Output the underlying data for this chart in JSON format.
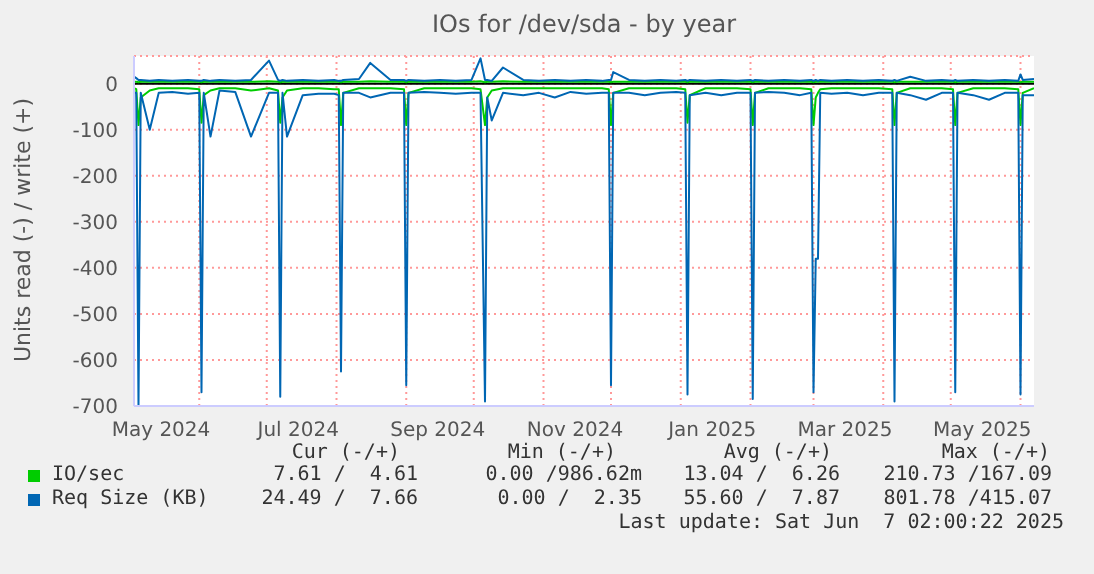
{
  "chart_data": {
    "type": "line",
    "title": "IOs for /dev/sda - by year",
    "ylabel": "Units read (-) / write (+)",
    "x": [
      "2024-05-03",
      "2024-05-04",
      "2024-05-05",
      "2024-05-06",
      "2024-05-10",
      "2024-05-14",
      "2024-05-20",
      "2024-05-27",
      "2024-06-01",
      "2024-06-02",
      "2024-06-03",
      "2024-06-06",
      "2024-06-10",
      "2024-06-17",
      "2024-06-24",
      "2024-07-02",
      "2024-07-06",
      "2024-07-07",
      "2024-07-08",
      "2024-07-10",
      "2024-07-17",
      "2024-07-24",
      "2024-07-31",
      "2024-08-02",
      "2024-08-03",
      "2024-08-04",
      "2024-08-11",
      "2024-08-16",
      "2024-08-25",
      "2024-08-31",
      "2024-09-01",
      "2024-09-02",
      "2024-09-09",
      "2024-09-16",
      "2024-09-23",
      "2024-09-30",
      "2024-10-04",
      "2024-10-06",
      "2024-10-07",
      "2024-10-09",
      "2024-10-14",
      "2024-10-23",
      "2024-10-30",
      "2024-11-06",
      "2024-11-13",
      "2024-11-20",
      "2024-11-27",
      "2024-11-30",
      "2024-12-01",
      "2024-12-02",
      "2024-12-09",
      "2024-12-16",
      "2024-12-23",
      "2024-12-30",
      "2025-01-03",
      "2025-01-04",
      "2025-01-05",
      "2025-01-12",
      "2025-01-19",
      "2025-01-26",
      "2025-02-01",
      "2025-02-02",
      "2025-02-03",
      "2025-02-09",
      "2025-02-16",
      "2025-02-23",
      "2025-02-28",
      "2025-03-01",
      "2025-03-02",
      "2025-03-03",
      "2025-03-04",
      "2025-03-09",
      "2025-03-16",
      "2025-03-23",
      "2025-03-30",
      "2025-04-05",
      "2025-04-06",
      "2025-04-07",
      "2025-04-13",
      "2025-04-20",
      "2025-04-27",
      "2025-05-02",
      "2025-05-03",
      "2025-05-04",
      "2025-05-11",
      "2025-05-18",
      "2025-05-25",
      "2025-05-31",
      "2025-06-01",
      "2025-06-02",
      "2025-06-07"
    ],
    "series": [
      {
        "name": "IO/sec",
        "color": "#00cc00",
        "values": [
          -10,
          -12,
          -90,
          -30,
          -15,
          -10,
          -10,
          -10,
          -12,
          -85,
          -25,
          -15,
          -10,
          -10,
          -15,
          -10,
          -15,
          -85,
          -30,
          -15,
          -10,
          -10,
          -12,
          -12,
          -90,
          -20,
          -10,
          -10,
          -10,
          -12,
          -90,
          -20,
          -10,
          -10,
          -10,
          -10,
          -12,
          -90,
          -30,
          -15,
          -10,
          -10,
          -10,
          -10,
          -10,
          -10,
          -10,
          -12,
          -90,
          -20,
          -10,
          -10,
          -10,
          -10,
          -12,
          -85,
          -25,
          -10,
          -10,
          -10,
          -12,
          -90,
          -20,
          -10,
          -10,
          -10,
          -12,
          -90,
          -30,
          -20,
          -12,
          -10,
          -10,
          -10,
          -10,
          -12,
          -90,
          -20,
          -10,
          -10,
          -10,
          -12,
          -90,
          -20,
          -10,
          -10,
          -10,
          -12,
          -90,
          -20,
          -10
        ]
      },
      {
        "color": "#00cc00",
        "values": [
          4,
          4,
          3,
          4,
          4,
          4,
          4,
          4,
          4,
          3,
          4,
          4,
          4,
          4,
          4,
          5,
          4,
          3,
          4,
          4,
          4,
          4,
          4,
          4,
          3,
          4,
          4,
          5,
          4,
          4,
          3,
          4,
          4,
          4,
          4,
          4,
          5,
          3,
          4,
          4,
          5,
          4,
          4,
          4,
          4,
          4,
          4,
          4,
          3,
          4,
          4,
          4,
          4,
          4,
          4,
          3,
          4,
          4,
          4,
          4,
          4,
          3,
          4,
          4,
          4,
          4,
          4,
          3,
          4,
          4,
          4,
          4,
          4,
          4,
          4,
          4,
          3,
          4,
          4,
          4,
          4,
          4,
          3,
          4,
          4,
          4,
          4,
          4,
          3,
          4,
          4
        ]
      },
      {
        "name": "Req Size (KB)",
        "color": "#0066b3",
        "values": [
          -20,
          -20,
          -700,
          -20,
          -100,
          -20,
          -18,
          -22,
          -20,
          -670,
          -20,
          -115,
          -15,
          -18,
          -115,
          -20,
          -20,
          -680,
          -20,
          -115,
          -25,
          -22,
          -22,
          -25,
          -625,
          -20,
          -20,
          -30,
          -20,
          -20,
          -655,
          -20,
          -18,
          -20,
          -22,
          -20,
          -20,
          -690,
          -30,
          -80,
          -20,
          -25,
          -20,
          -30,
          -18,
          -22,
          -20,
          -20,
          -655,
          -20,
          -20,
          -25,
          -20,
          -18,
          -20,
          -675,
          -25,
          -20,
          -25,
          -20,
          -20,
          -685,
          -20,
          -18,
          -20,
          -25,
          -20,
          -670,
          -380,
          -380,
          -20,
          -22,
          -20,
          -25,
          -20,
          -20,
          -690,
          -20,
          -25,
          -35,
          -20,
          -20,
          -670,
          -20,
          -25,
          -35,
          -20,
          -20,
          -675,
          -25,
          -25
        ]
      },
      {
        "color": "#0066b3",
        "values": [
          15,
          12,
          8,
          8,
          6,
          8,
          6,
          8,
          6,
          6,
          8,
          6,
          8,
          6,
          8,
          50,
          8,
          6,
          8,
          6,
          8,
          6,
          8,
          6,
          6,
          8,
          10,
          45,
          8,
          8,
          6,
          8,
          6,
          8,
          6,
          8,
          55,
          8,
          8,
          6,
          35,
          8,
          6,
          8,
          6,
          8,
          6,
          8,
          8,
          25,
          8,
          6,
          8,
          6,
          8,
          6,
          8,
          6,
          8,
          6,
          8,
          6,
          8,
          6,
          8,
          6,
          8,
          6,
          8,
          6,
          8,
          6,
          8,
          6,
          8,
          6,
          8,
          6,
          15,
          6,
          8,
          6,
          8,
          6,
          8,
          6,
          8,
          6,
          20,
          8,
          10
        ]
      }
    ],
    "ylim": [
      -700,
      60
    ],
    "yticks": [
      0,
      -100,
      -200,
      -300,
      -400,
      -500,
      -600,
      -700
    ],
    "xlim": [
      "2024-05-03",
      "2025-06-07"
    ],
    "xticks": [
      {
        "value": "2024-05-15",
        "label": "May 2024"
      },
      {
        "value": "2024-06-01",
        "label": null
      },
      {
        "value": "2024-07-01",
        "label": null
      },
      {
        "value": "2024-07-15",
        "label": "Jul 2024"
      },
      {
        "value": "2024-08-01",
        "label": null
      },
      {
        "value": "2024-09-01",
        "label": null
      },
      {
        "value": "2024-09-15",
        "label": "Sep 2024"
      },
      {
        "value": "2024-10-01",
        "label": null
      },
      {
        "value": "2024-11-01",
        "label": null
      },
      {
        "value": "2024-11-15",
        "label": "Nov 2024"
      },
      {
        "value": "2024-12-01",
        "label": null
      },
      {
        "value": "2025-01-01",
        "label": null
      },
      {
        "value": "2025-01-15",
        "label": "Jan 2025"
      },
      {
        "value": "2025-02-01",
        "label": null
      },
      {
        "value": "2025-03-01",
        "label": null
      },
      {
        "value": "2025-03-15",
        "label": "Mar 2025"
      },
      {
        "value": "2025-04-01",
        "label": null
      },
      {
        "value": "2025-05-01",
        "label": null
      },
      {
        "value": "2025-05-15",
        "label": "May 2025"
      },
      {
        "value": "2025-06-01",
        "label": null
      }
    ],
    "grid": true,
    "legend": "bottom",
    "ref_lines": [
      {
        "axis": "y",
        "value": 0,
        "color": "#000000"
      }
    ],
    "annotations": [
      "Cur (-/+)",
      "Min (-/+)",
      "Avg (-/+)",
      "Max (-/+)",
      "7.61 /  4.61",
      "0.00 /986.62m",
      "13.04 /  6.26",
      "210.73 /167.09",
      "24.49 /  7.66",
      "0.00 /  2.35",
      "55.60 /  7.87",
      "801.78 /415.07",
      "Last update: Sat Jun  7 02:00:22 2025"
    ]
  }
}
